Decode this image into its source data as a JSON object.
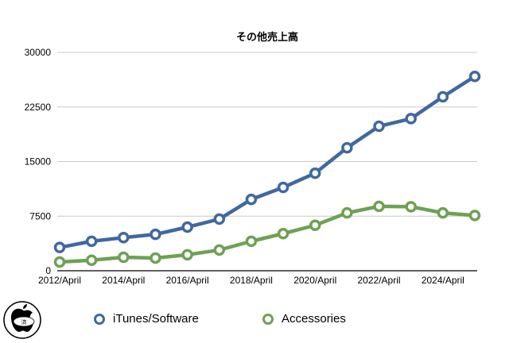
{
  "chart_data": {
    "type": "line",
    "title": "その他売上高",
    "x": [
      "2012",
      "2013",
      "2014",
      "2015",
      "2016",
      "2017",
      "2018",
      "2019",
      "2020",
      "2021",
      "2022",
      "2023",
      "2024",
      "2025"
    ],
    "x_tick_labels": [
      "2012/April",
      "2014/April",
      "2016/April",
      "2018/April",
      "2020/April",
      "2022/April",
      "2024/April"
    ],
    "y_tick_labels": [
      "0",
      "7500",
      "15000",
      "22500",
      "30000"
    ],
    "ylim": [
      0,
      30000
    ],
    "grid": true,
    "legend_position": "bottom",
    "series": [
      {
        "name": "iTunes/Software",
        "color": "#41689f",
        "values": [
          3200,
          4050,
          4550,
          5000,
          6000,
          7100,
          9800,
          11450,
          13400,
          16900,
          19850,
          20900,
          23900,
          26700
        ]
      },
      {
        "name": "Accessories",
        "color": "#6ea154",
        "values": [
          1200,
          1450,
          1850,
          1750,
          2200,
          2850,
          4050,
          5100,
          6250,
          7950,
          8850,
          8800,
          7950,
          7600
        ]
      }
    ]
  },
  "logo": {
    "text": "済"
  }
}
